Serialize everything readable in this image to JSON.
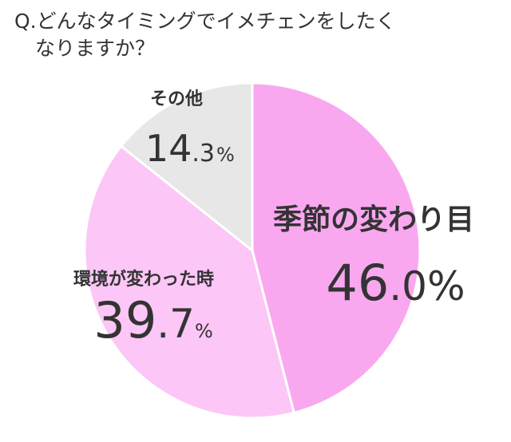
{
  "title": {
    "line1": "Q.どんなタイミングでイメチェンをしたく",
    "line2": "なりますか？"
  },
  "chart_data": {
    "type": "pie",
    "unit": "%",
    "slices": [
      {
        "label": "季節の変わり目",
        "value": 46.0,
        "int": "46",
        "dec": ".0",
        "color": "#f9a8f0"
      },
      {
        "label": "環境が変わった時",
        "value": 39.7,
        "int": "39",
        "dec": ".7",
        "color": "#fcc6f6"
      },
      {
        "label": "その他",
        "value": 14.3,
        "int": "14",
        "dec": ".3",
        "color": "#e7e7e7"
      }
    ]
  }
}
